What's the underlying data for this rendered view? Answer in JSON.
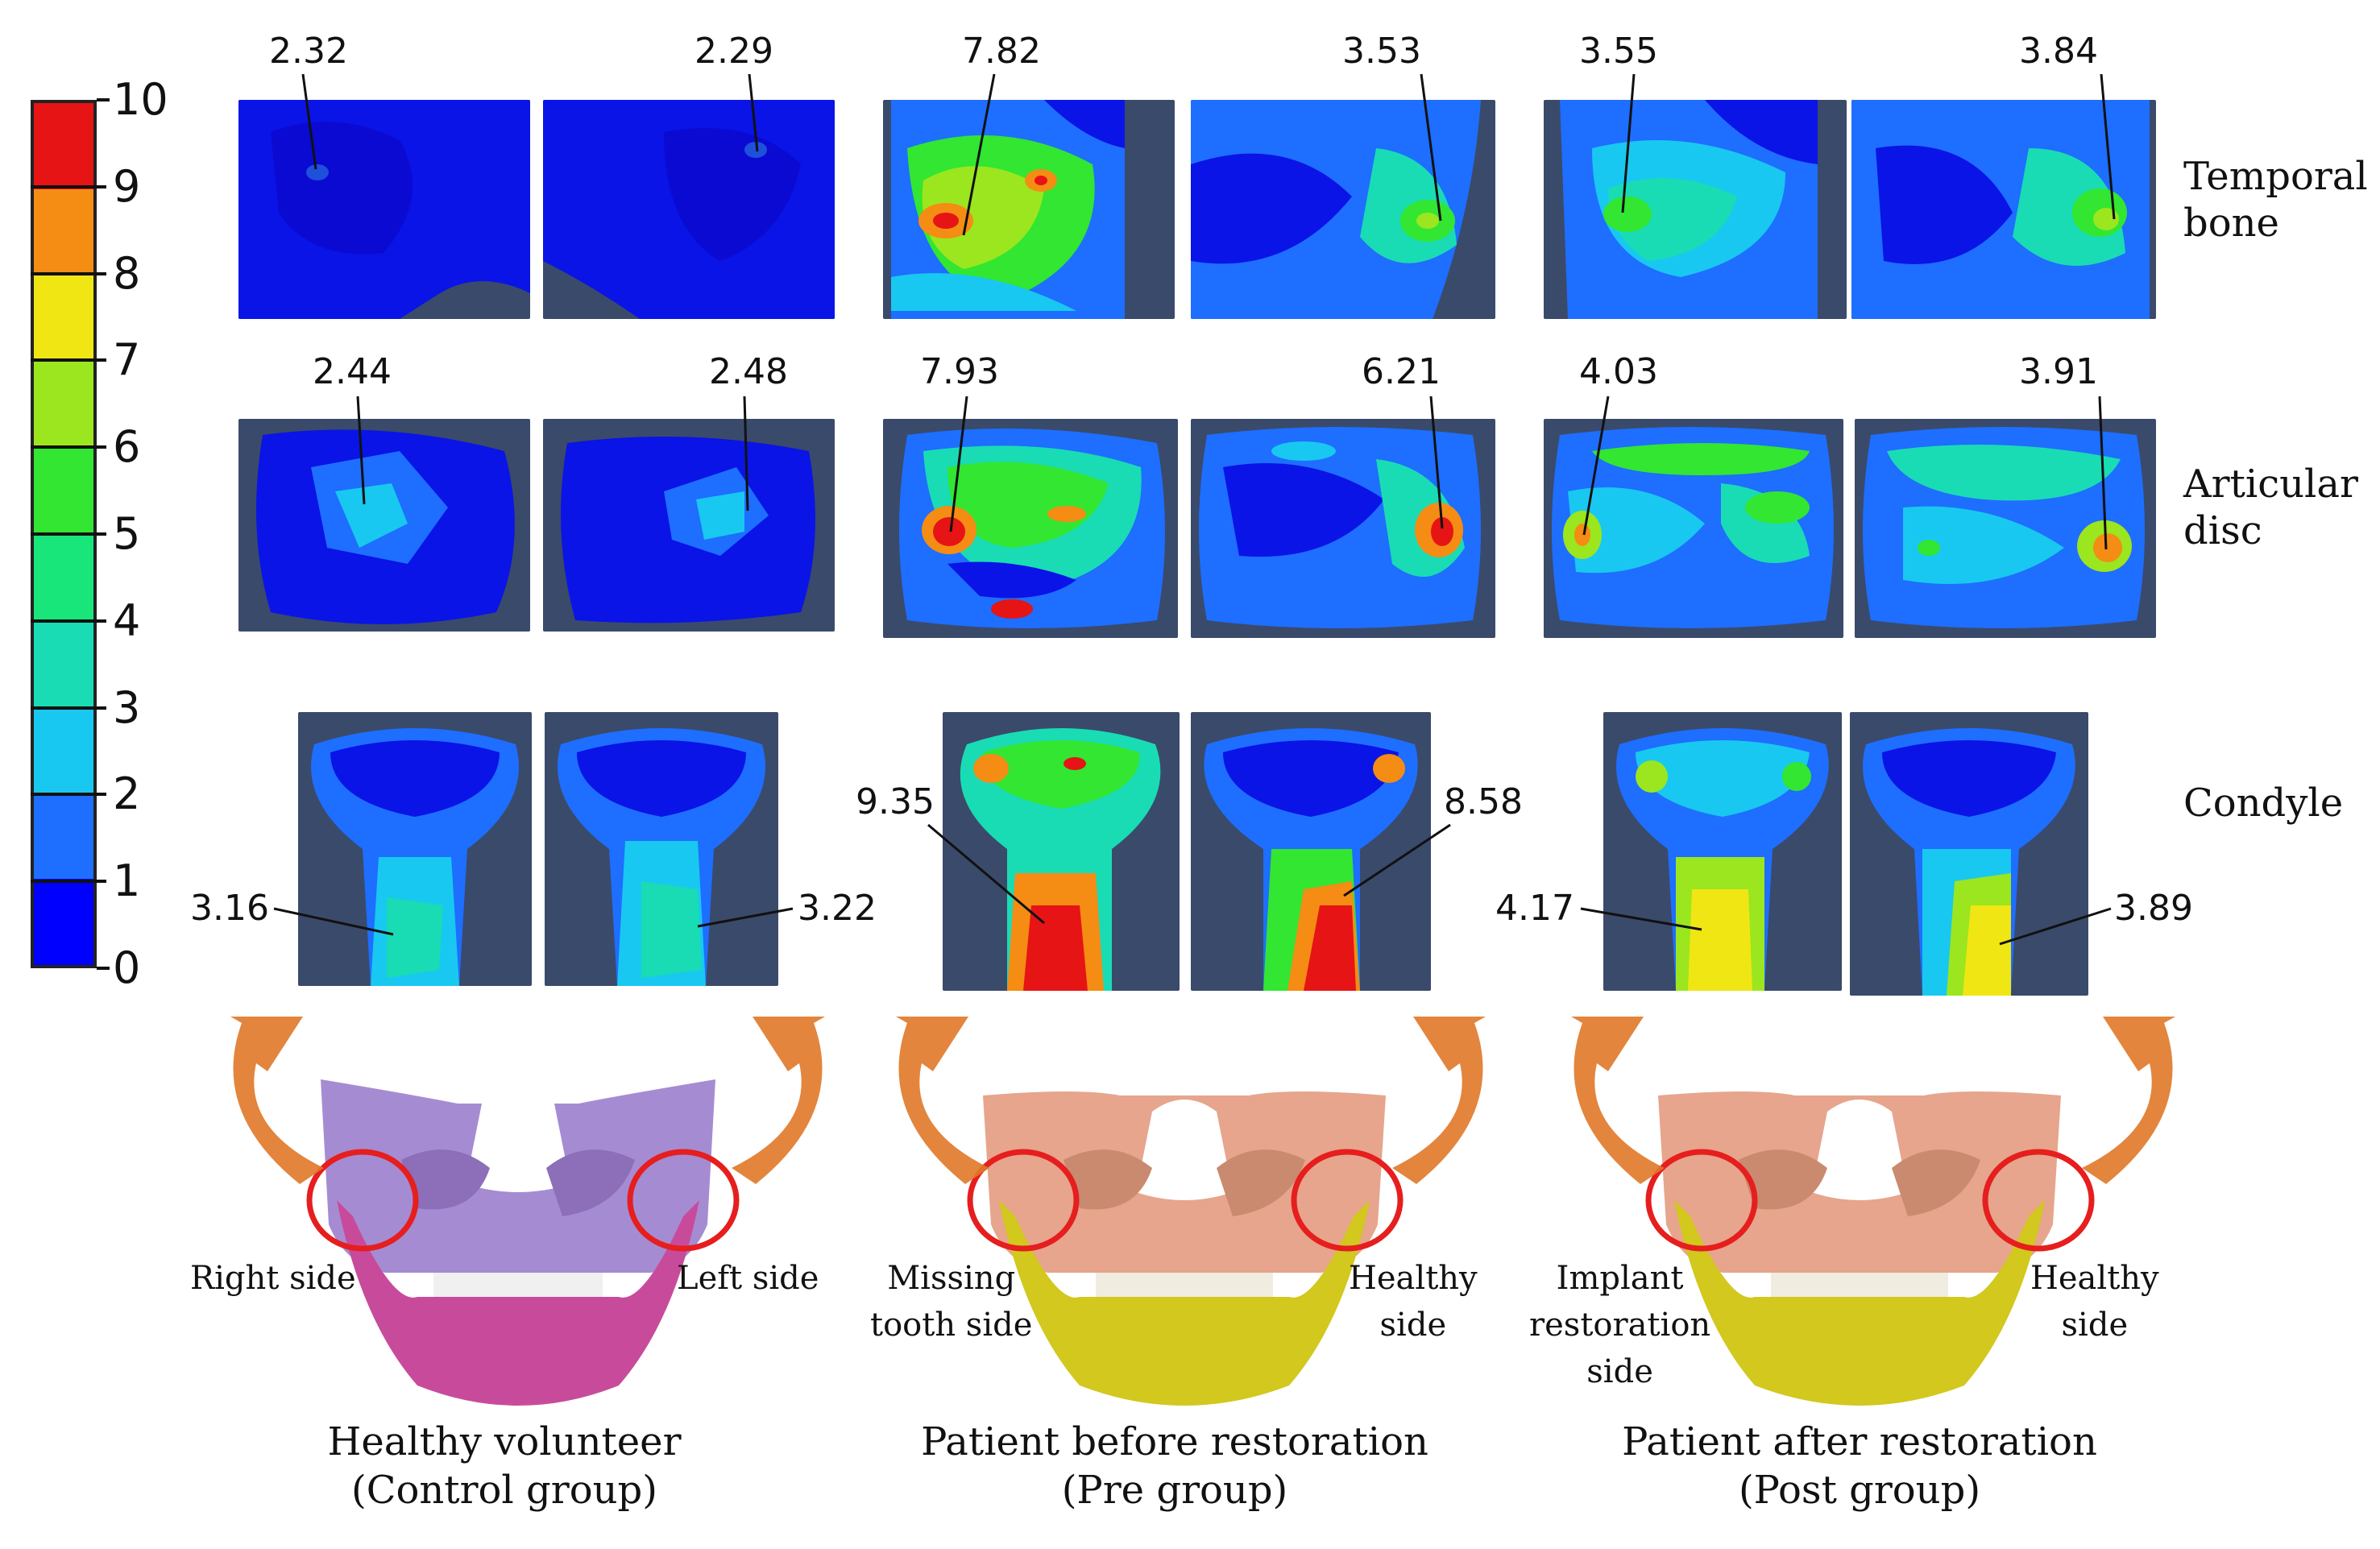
{
  "colorbar": {
    "ticks": [
      "0",
      "1",
      "2",
      "3",
      "4",
      "5",
      "6",
      "7",
      "8",
      "9",
      "10"
    ],
    "colors": [
      "#0000ff",
      "#1e6eff",
      "#19c8f0",
      "#19dcb4",
      "#19e67a",
      "#32e632",
      "#9be61e",
      "#f0e614",
      "#f58c14",
      "#e61414"
    ]
  },
  "rows": {
    "temporal_bone": "Temporal\nbone",
    "articular_disc": "Articular\ndisc",
    "condyle": "Condyle"
  },
  "values": {
    "control": {
      "temporal_right": "2.32",
      "temporal_left": "2.29",
      "disc_right": "2.44",
      "disc_left": "2.48",
      "condyle_right": "3.16",
      "condyle_left": "3.22"
    },
    "pre": {
      "temporal_missing": "7.82",
      "temporal_healthy": "3.53",
      "disc_missing": "7.93",
      "disc_healthy": "6.21",
      "condyle_missing": "9.35",
      "condyle_healthy": "8.58"
    },
    "post": {
      "temporal_implant": "3.55",
      "temporal_healthy": "3.84",
      "disc_implant": "4.03",
      "disc_healthy": "3.91",
      "condyle_implant": "4.17",
      "condyle_healthy": "3.89"
    }
  },
  "sides": {
    "control_right": "Right side",
    "control_left": "Left side",
    "pre_missing": "Missing\ntooth side",
    "pre_healthy": "Healthy\nside",
    "post_implant": "Implant\nrestoration\nside",
    "post_healthy": "Healthy\nside"
  },
  "groups": {
    "control": "Healthy volunteer\n(Control group)",
    "pre": "Patient before restoration\n(Pre group)",
    "post": "Patient after restoration\n(Post group)"
  },
  "skull_colors": {
    "control_upper": "#a58cd2",
    "control_lower": "#c84b9b",
    "patient_upper": "#e6a58c",
    "patient_lower": "#d2c81e"
  },
  "accent_colors": {
    "arrow": "#e07828",
    "circle": "#e61e1e"
  }
}
